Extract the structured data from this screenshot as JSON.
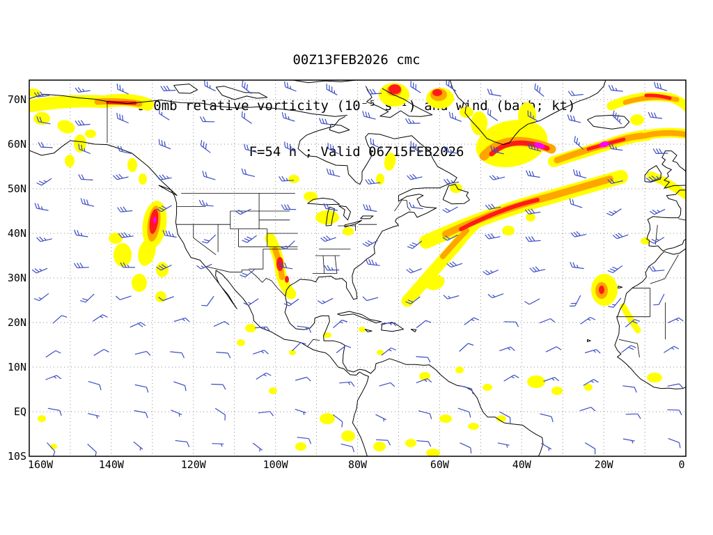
{
  "title": {
    "line1": "00Z13FEB2026 cmc",
    "line2": "950mb relative vorticity (10⁻⁵ s⁻¹) and wind (barb; kt)",
    "line3": "F=54 h ; Valid 06Z15FEB2026"
  },
  "axes": {
    "y_ticks": [
      {
        "label": "70N",
        "lat": 70
      },
      {
        "label": "60N",
        "lat": 60
      },
      {
        "label": "50N",
        "lat": 50
      },
      {
        "label": "40N",
        "lat": 40
      },
      {
        "label": "30N",
        "lat": 30
      },
      {
        "label": "20N",
        "lat": 20
      },
      {
        "label": "10N",
        "lat": 10
      },
      {
        "label": "EQ",
        "lat": 0
      },
      {
        "label": "10S",
        "lat": -10
      }
    ],
    "x_ticks": [
      {
        "label": "160W",
        "lon": -160
      },
      {
        "label": "140W",
        "lon": -140
      },
      {
        "label": "120W",
        "lon": -120
      },
      {
        "label": "100W",
        "lon": -100
      },
      {
        "label": "80W",
        "lon": -80
      },
      {
        "label": "60W",
        "lon": -60
      },
      {
        "label": "40W",
        "lon": -40
      },
      {
        "label": "20W",
        "lon": -20
      },
      {
        "label": "0",
        "lon": 0
      }
    ]
  },
  "colors": {
    "background": "#ffffff",
    "frame": "#000000",
    "grid": "#8a8a8a",
    "coast": "#000000",
    "border": "#000000",
    "barb": "#3a4cc3",
    "vort_yellow": "#ffff00",
    "vort_orange": "#ffa500",
    "vort_red": "#ff1a1a",
    "vort_magenta": "#ff00ff"
  },
  "chart_data": {
    "type": "contour_map",
    "model": "cmc",
    "field": "950mb relative vorticity",
    "units": "10⁻⁵ s⁻¹",
    "overlay": "wind (barb; kt)",
    "init_time": "00Z13FEB2026",
    "forecast_hour": "F=54 h",
    "valid_time": "06Z15FEB2026",
    "x_axis": {
      "kind": "longitude",
      "ticks": [
        "160W",
        "140W",
        "120W",
        "100W",
        "80W",
        "60W",
        "40W",
        "20W",
        "0"
      ]
    },
    "y_axis": {
      "kind": "latitude",
      "ticks": [
        "70N",
        "60N",
        "50N",
        "40N",
        "30N",
        "20N",
        "10N",
        "EQ",
        "10S"
      ]
    },
    "grid": "dotted, 10-degree spacing",
    "shading_levels_increasing": [
      "yellow",
      "orange",
      "red",
      "magenta"
    ],
    "notable_vorticity_features": [
      {
        "region": "Alaska / Arctic coast band (~70N, 160-140W)",
        "intensity": "moderate-strong with red core"
      },
      {
        "region": "Offshore US West Coast (~35-42N, 130W)",
        "intensity": "strong, red core"
      },
      {
        "region": "Southern Plains / ArkLaTex (~33-36N, 99W)",
        "intensity": "strong, red core"
      },
      {
        "region": "SW-NE band in western Atlantic (~30-45N, 70-50W)",
        "intensity": "moderate with orange-red segment"
      },
      {
        "region": "Long band across central North Atlantic (~42-55N, 55-15W)",
        "intensity": "strong, orange-red"
      },
      {
        "region": "South of Greenland / Labrador Sea (~58-62N)",
        "intensity": "intense, magenta core"
      },
      {
        "region": "Iceland - UK sector (~60-66N)",
        "intensity": "intense, magenta core"
      },
      {
        "region": "Baffin Bay / northern Canada (~70N, 60-75W)",
        "intensity": "strong, red cores"
      },
      {
        "region": "NW Africa (~25N, 13W)",
        "intensity": "moderate, red speck"
      },
      {
        "region": "Scattered weak tropical / ITCZ cells (10S-15N)",
        "intensity": "weak (yellow)"
      }
    ],
    "wind_field_summary": "Mid-latitude westerlies 15-35 kt, NE trades 10-20 kt, light equatorial easterlies"
  }
}
